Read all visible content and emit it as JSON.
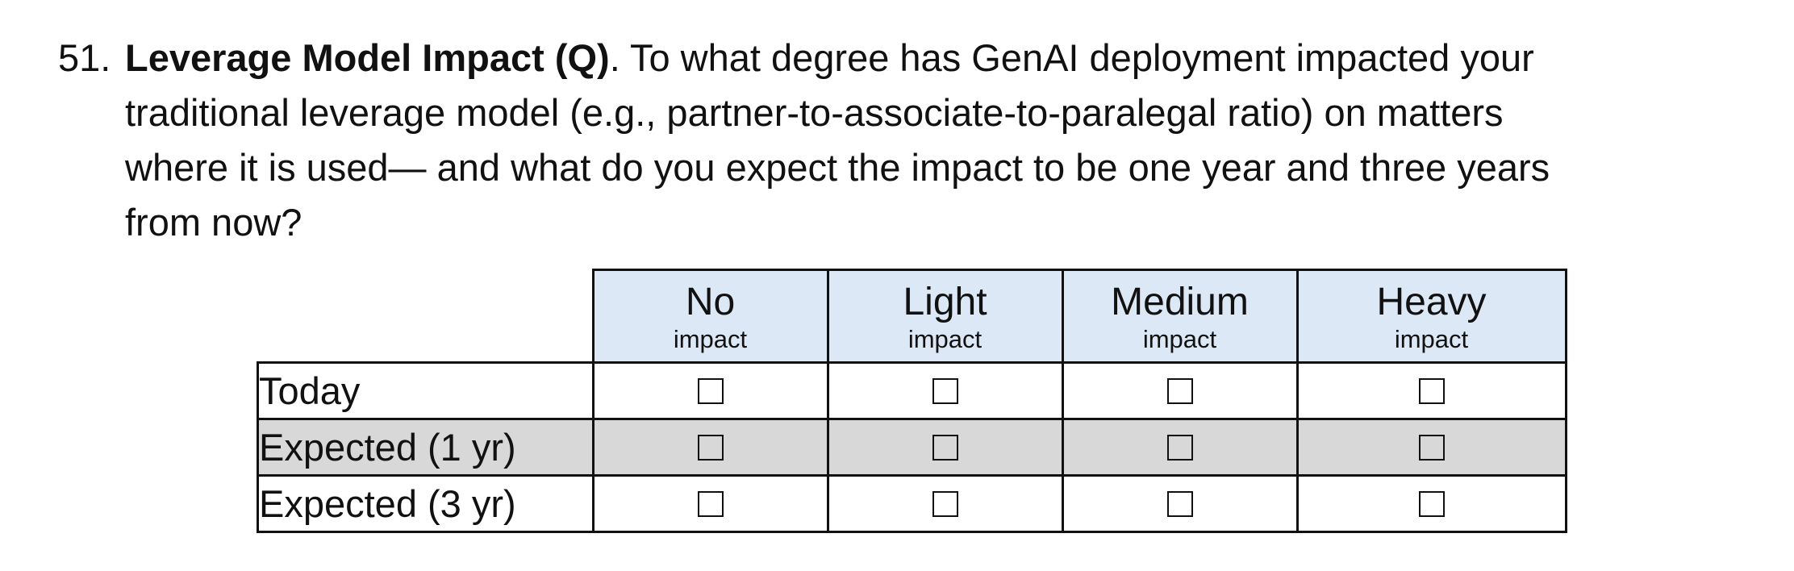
{
  "question": {
    "number": "51.",
    "title": "Leverage Model Impact (Q)",
    "line1_rest": ". To what degree has GenAI deployment impacted your",
    "line2": "traditional leverage model (e.g., partner-to-associate-to-paralegal ratio) on matters",
    "line3": "where it is used— and what do you expect the impact to be one year and three years",
    "line4": "from now?"
  },
  "grid": {
    "columns": [
      {
        "main": "No",
        "sub": "impact"
      },
      {
        "main": "Light",
        "sub": "impact"
      },
      {
        "main": "Medium",
        "sub": "impact"
      },
      {
        "main": "Heavy",
        "sub": "impact"
      }
    ],
    "rows": [
      {
        "label": "Today",
        "shaded": false
      },
      {
        "label": "Expected (1 yr)",
        "shaded": true
      },
      {
        "label": "Expected (3 yr)",
        "shaded": false
      }
    ]
  },
  "colors": {
    "header_fill": "#dde8f6",
    "shaded_row_fill": "#d8d8d8",
    "border": "#111111"
  }
}
